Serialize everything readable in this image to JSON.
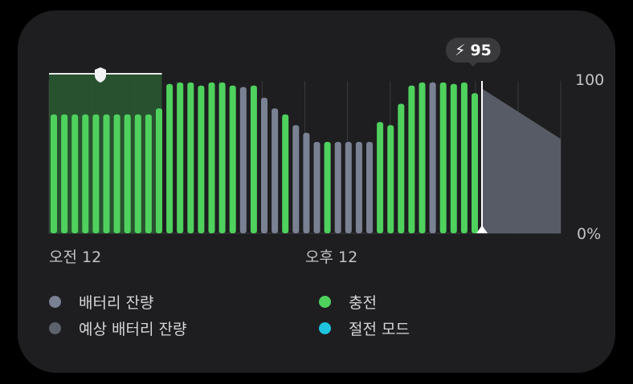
{
  "chart_data": {
    "type": "bar",
    "title": "",
    "badge": {
      "icon": "lightning-icon",
      "value": "95"
    },
    "y_ticks": {
      "top": "100",
      "bottom": "0%"
    },
    "ylim": [
      0,
      100
    ],
    "x_ticks": [
      "오전 12",
      "오후 12"
    ],
    "grid": true,
    "colors": {
      "battery": "#7a8193",
      "predicted": "#5d626d",
      "charging": "#4fd15e",
      "power_saving": "#1fc4e0",
      "protect": "#2a5a32"
    },
    "series": [
      {
        "name": "배터리 잔량",
        "values": [
          null,
          null,
          null,
          null,
          null,
          null,
          null,
          null,
          null,
          null,
          null,
          null,
          null,
          null,
          null,
          null,
          null,
          null,
          96,
          96,
          null,
          null,
          null,
          null,
          null,
          null,
          null,
          null,
          null,
          null,
          null,
          null,
          null,
          null,
          null,
          null,
          null,
          null,
          null,
          null,
          null,
          null,
          null,
          null,
          null,
          null,
          null,
          null,
          null,
          null,
          null,
          null,
          null,
          null,
          null,
          null,
          null,
          null,
          null,
          null,
          null,
          null,
          null,
          null,
          null
        ]
      },
      {
        "name": "충전",
        "values": []
      }
    ],
    "bars": [
      {
        "v": 78,
        "s": "charging"
      },
      {
        "v": 78,
        "s": "charging"
      },
      {
        "v": 78,
        "s": "charging"
      },
      {
        "v": 78,
        "s": "charging"
      },
      {
        "v": 78,
        "s": "charging"
      },
      {
        "v": 78,
        "s": "charging"
      },
      {
        "v": 78,
        "s": "charging"
      },
      {
        "v": 78,
        "s": "charging"
      },
      {
        "v": 78,
        "s": "charging"
      },
      {
        "v": 78,
        "s": "charging"
      },
      {
        "v": 82,
        "s": "charging"
      },
      {
        "v": 98,
        "s": "charging"
      },
      {
        "v": 99,
        "s": "charging"
      },
      {
        "v": 99,
        "s": "charging"
      },
      {
        "v": 97,
        "s": "charging"
      },
      {
        "v": 99,
        "s": "charging"
      },
      {
        "v": 99,
        "s": "charging"
      },
      {
        "v": 97,
        "s": "charging"
      },
      {
        "v": 96,
        "s": "battery"
      },
      {
        "v": 97,
        "s": "charging"
      },
      {
        "v": 89,
        "s": "battery"
      },
      {
        "v": 82,
        "s": "battery"
      },
      {
        "v": 78,
        "s": "charging"
      },
      {
        "v": 71,
        "s": "battery"
      },
      {
        "v": 66,
        "s": "battery"
      },
      {
        "v": 60,
        "s": "battery"
      },
      {
        "v": 60,
        "s": "charging"
      },
      {
        "v": 60,
        "s": "battery"
      },
      {
        "v": 60,
        "s": "battery"
      },
      {
        "v": 60,
        "s": "battery"
      },
      {
        "v": 60,
        "s": "battery"
      },
      {
        "v": 73,
        "s": "charging"
      },
      {
        "v": 71,
        "s": "charging"
      },
      {
        "v": 85,
        "s": "charging"
      },
      {
        "v": 97,
        "s": "charging"
      },
      {
        "v": 99,
        "s": "charging"
      },
      {
        "v": 99,
        "s": "battery"
      },
      {
        "v": 99,
        "s": "charging"
      },
      {
        "v": 98,
        "s": "charging"
      },
      {
        "v": 99,
        "s": "charging"
      },
      {
        "v": 92,
        "s": "charging"
      }
    ],
    "predicted": {
      "start": 95,
      "end": 62
    },
    "protected_range": [
      0,
      10
    ]
  },
  "legend": [
    {
      "label": "배터리 잔량",
      "color": "#7a8193"
    },
    {
      "label": "충전",
      "color": "#4fd15e"
    },
    {
      "label": "예상 배터리 잔량",
      "color": "#5d626d"
    },
    {
      "label": "절전 모드",
      "color": "#1fc4e0"
    }
  ]
}
